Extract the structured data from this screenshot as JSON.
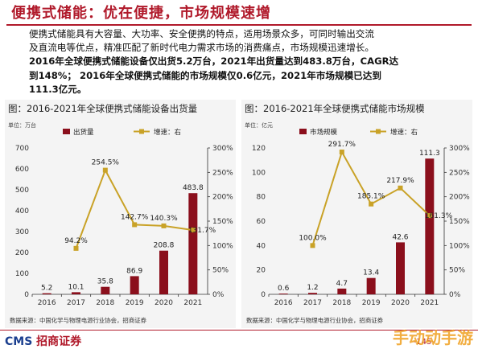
{
  "header": {
    "title": "便携式储能：优在便捷，市场规模速增"
  },
  "paragraph": {
    "line1": "便携式储能具有大容量、大功率、安全便携的特点，适用场景众多，可同时输出交流",
    "line2": "及直流电等优点，精准匹配了新时代电力需求市场的消费痛点，市场规模迅速增长。",
    "line3": "2016年全球便携式储能设备仅出货5.2万台，2021年出货量达到483.8万台，CAGR达",
    "line4": "到148%；  2016年全球便携式储能的市场规模仅0.6亿元，2021年市场规模已达到",
    "line5": "111.3亿元。"
  },
  "colors": {
    "bar": "#8b0f1c",
    "line": "#c9a227",
    "accent": "#b0192a"
  },
  "chart_data": [
    {
      "type": "bar",
      "title": "图：2016-2021年全球便携式储能设备出货量",
      "unit_left": "单位：万台",
      "categories": [
        "2016",
        "2017",
        "2018",
        "2019",
        "2020",
        "2021"
      ],
      "series": [
        {
          "name": "出货量",
          "axis": "left",
          "type": "bar",
          "values": [
            5.2,
            10.1,
            35.8,
            86.9,
            208.8,
            483.8
          ],
          "labels": [
            "5.2",
            "10.1",
            "35.8",
            "86.9",
            "208.8",
            "483.8"
          ]
        },
        {
          "name": "增速：右",
          "axis": "right",
          "type": "line",
          "values": [
            null,
            94.2,
            254.5,
            142.7,
            140.3,
            131.7
          ],
          "labels": [
            "",
            "94.2%",
            "254.5%",
            "142.7%",
            "140.3%",
            "131.7%"
          ]
        }
      ],
      "ylim_left": [
        0,
        700
      ],
      "yticks_left": [
        "0",
        "100",
        "200",
        "300",
        "400",
        "500",
        "600",
        "700"
      ],
      "ylim_right": [
        0,
        300
      ],
      "yticks_right": [
        "0%",
        "50%",
        "100%",
        "150%",
        "200%",
        "250%",
        "300%"
      ],
      "source": "数据来源：中国化学与物理电源行业协会，招商证券"
    },
    {
      "type": "bar",
      "title": "图：2016-2021年全球便携式储能市场规模",
      "unit_left": "单位：亿元",
      "categories": [
        "2016",
        "2017",
        "2018",
        "2019",
        "2020",
        "2021"
      ],
      "series": [
        {
          "name": "市场规模",
          "axis": "left",
          "type": "bar",
          "values": [
            0.6,
            1.2,
            4.7,
            13.4,
            42.6,
            111.3
          ],
          "labels": [
            "0.6",
            "1.2",
            "4.7",
            "13.4",
            "42.6",
            "111.3"
          ]
        },
        {
          "name": "增速：右",
          "axis": "right",
          "type": "line",
          "values": [
            null,
            100.0,
            291.7,
            185.1,
            217.9,
            161.3
          ],
          "labels": [
            "",
            "100.0%",
            "291.7%",
            "185.1%",
            "217.9%",
            "161.3%"
          ]
        }
      ],
      "ylim_left": [
        0,
        120
      ],
      "yticks_left": [
        "0",
        "20",
        "40",
        "60",
        "80",
        "100",
        "120"
      ],
      "ylim_right": [
        0,
        300
      ],
      "yticks_right": [
        "0%",
        "50%",
        "100%",
        "150%",
        "200%",
        "250%",
        "300%"
      ],
      "source": "数据来源：中国化学与物理电源行业协会，招商证券"
    }
  ],
  "footer": {
    "logo_cms": "CMS",
    "logo_text": "招商证券",
    "page": "-145-",
    "watermark": "手动动手游"
  }
}
